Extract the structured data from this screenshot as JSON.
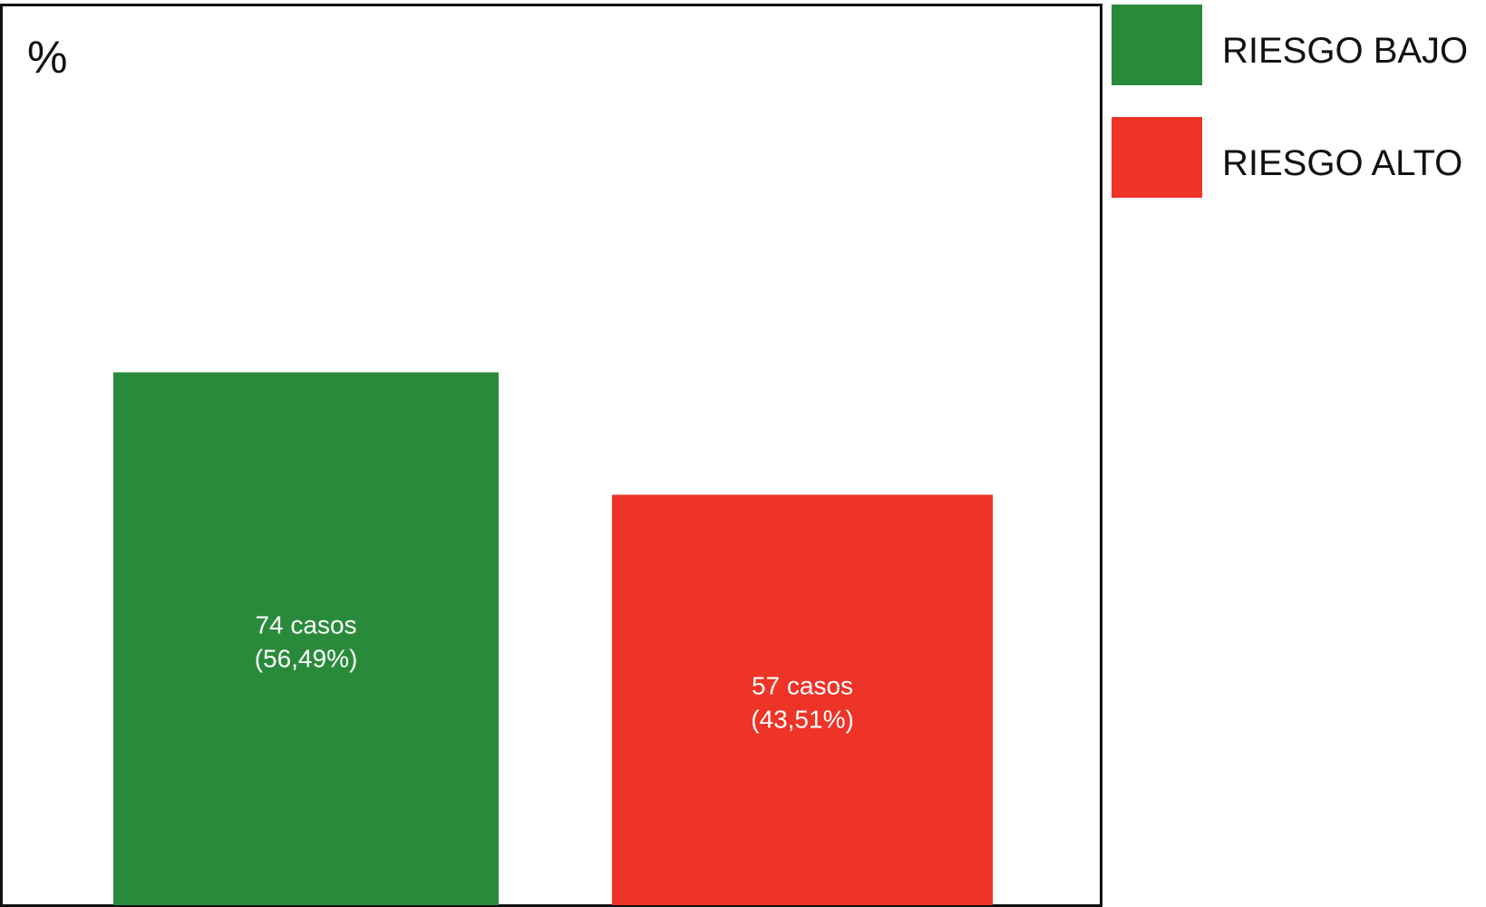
{
  "chart_data": {
    "type": "bar",
    "title": "",
    "xlabel": "",
    "ylabel": "%",
    "ylim": [
      0,
      100
    ],
    "grid": false,
    "legend_position": "right",
    "categories": [
      "RIESGO BAJO",
      "RIESGO ALTO"
    ],
    "values": [
      56.49,
      43.51
    ],
    "counts": [
      74,
      57
    ],
    "colors": [
      "#2a8a3c",
      "#ee3327"
    ],
    "bar_labels": [
      {
        "line1": "74 casos",
        "line2": "(56,49%)"
      },
      {
        "line1": "57 casos",
        "line2": "(43,51%)"
      }
    ],
    "legend": [
      {
        "label": "RIESGO BAJO",
        "color": "#2a8a3c"
      },
      {
        "label": "RIESGO ALTO",
        "color": "#ee3327"
      }
    ]
  }
}
